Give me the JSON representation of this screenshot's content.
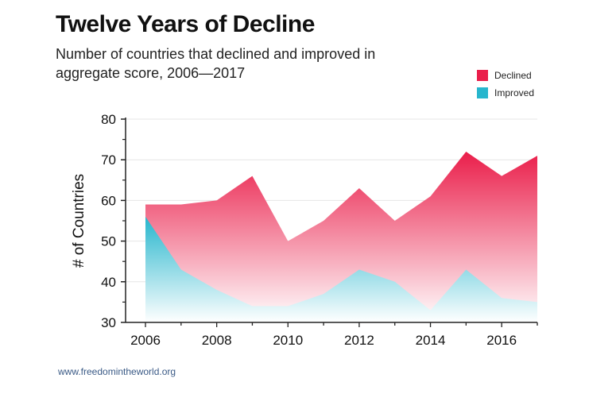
{
  "chart_data": {
    "type": "area",
    "title": "Twelve Years of Decline",
    "subtitle": "Number of countries that declined and improved in aggregate score, 2006—2017",
    "ylabel": "# of Countries",
    "xlabel": "",
    "x": [
      2006,
      2007,
      2008,
      2009,
      2010,
      2011,
      2012,
      2013,
      2014,
      2015,
      2016,
      2017
    ],
    "xticks": [
      "2006",
      "2008",
      "2010",
      "2012",
      "2014",
      "2016"
    ],
    "yticks": [
      "30",
      "40",
      "50",
      "60",
      "70",
      "80"
    ],
    "ylim": [
      30,
      80
    ],
    "xlim": [
      2006,
      2017
    ],
    "grid": true,
    "legend_position": "top-right",
    "series": [
      {
        "name": "Declined",
        "color": "#ea1e4a",
        "values": [
          59,
          59,
          60,
          66,
          50,
          55,
          63,
          55,
          61,
          72,
          66,
          71
        ]
      },
      {
        "name": "Improved",
        "color": "#27b6cd",
        "values": [
          56,
          43,
          38,
          34,
          34,
          37,
          43,
          40,
          33,
          43,
          36,
          35
        ]
      }
    ]
  },
  "source": "www.freedomintheworld.org"
}
